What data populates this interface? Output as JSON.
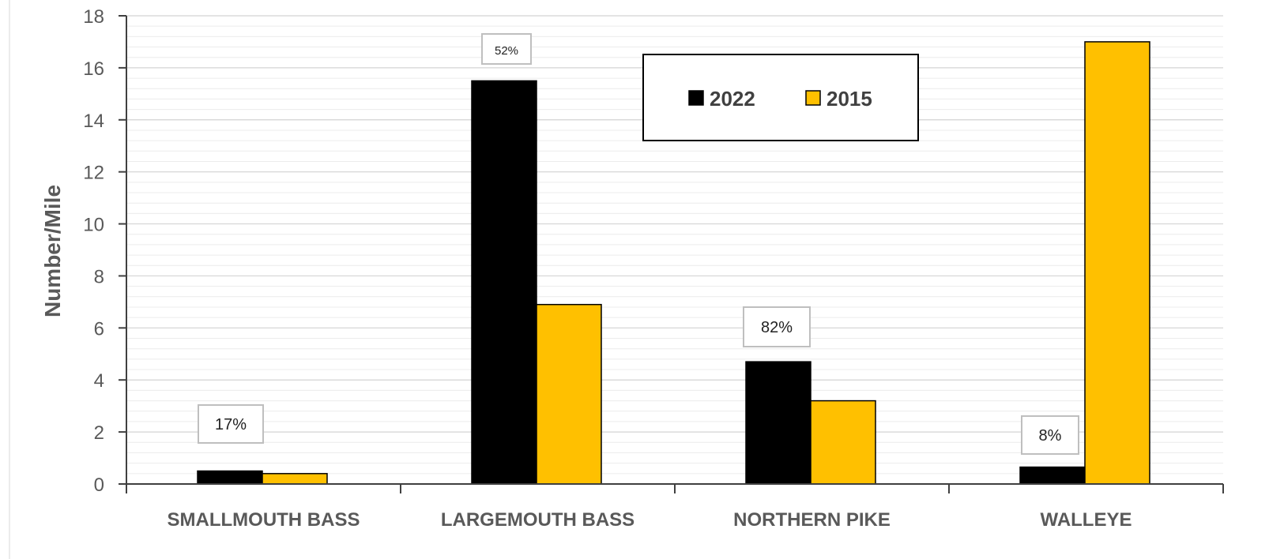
{
  "chart_data": {
    "type": "bar",
    "title": "",
    "xlabel": "",
    "ylabel": "Number/Mile",
    "ylim": [
      0,
      18
    ],
    "yticks": [
      0,
      2,
      4,
      6,
      8,
      10,
      12,
      14,
      16,
      18
    ],
    "grid": true,
    "legend_position": "top-right",
    "categories": [
      "SMALLMOUTH BASS",
      "LARGEMOUTH BASS",
      "NORTHERN PIKE",
      "WALLEYE"
    ],
    "series": [
      {
        "name": "2022",
        "color": "#000000",
        "values": [
          0.5,
          15.5,
          4.7,
          0.65
        ]
      },
      {
        "name": "2015",
        "color": "#FFC000",
        "values": [
          0.4,
          6.9,
          3.2,
          17.0
        ]
      }
    ],
    "annotations": [
      "17%",
      "52%",
      "82%",
      "8%"
    ]
  }
}
